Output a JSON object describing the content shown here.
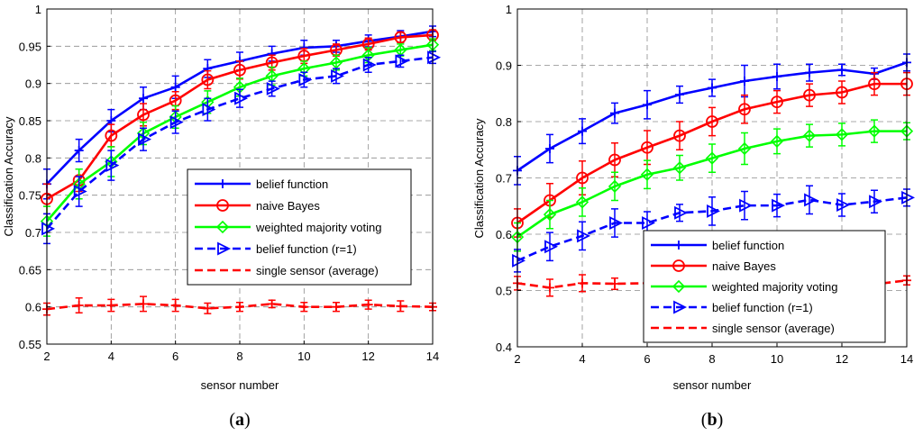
{
  "chart_data": [
    {
      "type": "line",
      "panel_label_open": "(",
      "panel_label_letter": "a",
      "panel_label_close": ")",
      "xlabel": "sensor number",
      "ylabel": "Classification Accuracy",
      "xlim": [
        2,
        14
      ],
      "ylim": [
        0.55,
        1
      ],
      "xticks": [
        2,
        4,
        6,
        8,
        10,
        12,
        14
      ],
      "yticks": [
        0.55,
        0.6,
        0.65,
        0.7,
        0.75,
        0.8,
        0.85,
        0.9,
        0.95,
        1
      ],
      "ytick_labels": [
        "0.55",
        "0.6",
        "0.65",
        "0.7",
        "0.75",
        "0.8",
        "0.85",
        "0.9",
        "0.95",
        "1"
      ],
      "grid": true,
      "legend_position": "center-right",
      "x": [
        2,
        3,
        4,
        5,
        6,
        7,
        8,
        9,
        10,
        11,
        12,
        13,
        14
      ],
      "series": [
        {
          "name": "belief function",
          "color": "#0000ff",
          "style": "solid",
          "marker": "plus",
          "values": [
            0.765,
            0.81,
            0.85,
            0.88,
            0.895,
            0.92,
            0.93,
            0.94,
            0.948,
            0.95,
            0.957,
            0.963,
            0.97
          ],
          "errors": [
            0.02,
            0.015,
            0.015,
            0.015,
            0.015,
            0.012,
            0.012,
            0.01,
            0.01,
            0.008,
            0.008,
            0.008,
            0.007
          ]
        },
        {
          "name": "naive Bayes",
          "color": "#ff0000",
          "style": "solid",
          "marker": "circle",
          "values": [
            0.745,
            0.77,
            0.83,
            0.858,
            0.877,
            0.905,
            0.918,
            0.928,
            0.937,
            0.945,
            0.953,
            0.962,
            0.965
          ],
          "errors": [
            0.02,
            0.015,
            0.015,
            0.015,
            0.012,
            0.012,
            0.012,
            0.01,
            0.01,
            0.008,
            0.008,
            0.007,
            0.007
          ]
        },
        {
          "name": "weighted majority voting",
          "color": "#00ff00",
          "style": "solid",
          "marker": "diamond",
          "values": [
            0.715,
            0.765,
            0.795,
            0.833,
            0.855,
            0.875,
            0.895,
            0.91,
            0.92,
            0.928,
            0.938,
            0.945,
            0.952
          ],
          "errors": [
            0.02,
            0.02,
            0.02,
            0.015,
            0.015,
            0.015,
            0.012,
            0.012,
            0.01,
            0.01,
            0.01,
            0.008,
            0.008
          ]
        },
        {
          "name": "belief function (r=1)",
          "color": "#0000ff",
          "style": "dashed",
          "marker": "triangle-right",
          "values": [
            0.705,
            0.755,
            0.79,
            0.825,
            0.848,
            0.865,
            0.88,
            0.893,
            0.905,
            0.91,
            0.925,
            0.93,
            0.935
          ],
          "errors": [
            0.02,
            0.02,
            0.02,
            0.015,
            0.015,
            0.015,
            0.012,
            0.01,
            0.01,
            0.01,
            0.01,
            0.008,
            0.008
          ]
        },
        {
          "name": "single sensor (average)",
          "color": "#ff0000",
          "style": "dashed",
          "marker": "plus",
          "values": [
            0.597,
            0.602,
            0.602,
            0.604,
            0.602,
            0.598,
            0.6,
            0.604,
            0.6,
            0.6,
            0.603,
            0.601,
            0.6
          ],
          "errors": [
            0.008,
            0.01,
            0.008,
            0.01,
            0.008,
            0.007,
            0.006,
            0.005,
            0.006,
            0.006,
            0.006,
            0.007,
            0.005
          ]
        }
      ]
    },
    {
      "type": "line",
      "panel_label_open": "(",
      "panel_label_letter": "b",
      "panel_label_close": ")",
      "xlabel": "sensor number",
      "ylabel": "Classification Accuracy",
      "xlim": [
        2,
        14
      ],
      "ylim": [
        0.4,
        1
      ],
      "xticks": [
        2,
        4,
        6,
        8,
        10,
        12,
        14
      ],
      "yticks": [
        0.4,
        0.5,
        0.6,
        0.7,
        0.8,
        0.9,
        1
      ],
      "ytick_labels": [
        "0.4",
        "0.5",
        "0.6",
        "0.7",
        "0.8",
        "0.9",
        "1"
      ],
      "grid": true,
      "legend_position": "bottom-right",
      "x": [
        2,
        3,
        4,
        5,
        6,
        7,
        8,
        9,
        10,
        11,
        12,
        13,
        14
      ],
      "series": [
        {
          "name": "belief function",
          "color": "#0000ff",
          "style": "solid",
          "marker": "plus",
          "values": [
            0.713,
            0.752,
            0.783,
            0.815,
            0.83,
            0.848,
            0.86,
            0.872,
            0.88,
            0.887,
            0.892,
            0.885,
            0.905
          ],
          "errors": [
            0.025,
            0.025,
            0.022,
            0.018,
            0.025,
            0.015,
            0.015,
            0.028,
            0.022,
            0.015,
            0.01,
            0.01,
            0.015
          ]
        },
        {
          "name": "naive Bayes",
          "color": "#ff0000",
          "style": "solid",
          "marker": "circle",
          "values": [
            0.62,
            0.66,
            0.7,
            0.732,
            0.754,
            0.775,
            0.8,
            0.822,
            0.835,
            0.847,
            0.852,
            0.867,
            0.867
          ],
          "errors": [
            0.025,
            0.03,
            0.03,
            0.03,
            0.03,
            0.025,
            0.025,
            0.025,
            0.02,
            0.02,
            0.02,
            0.02,
            0.02
          ]
        },
        {
          "name": "weighted majority voting",
          "color": "#00ff00",
          "style": "solid",
          "marker": "diamond",
          "values": [
            0.595,
            0.635,
            0.657,
            0.685,
            0.706,
            0.718,
            0.735,
            0.752,
            0.765,
            0.775,
            0.777,
            0.783,
            0.783
          ],
          "errors": [
            0.025,
            0.025,
            0.025,
            0.025,
            0.025,
            0.022,
            0.025,
            0.028,
            0.022,
            0.02,
            0.02,
            0.02,
            0.015
          ]
        },
        {
          "name": "belief function (r=1)",
          "color": "#0000ff",
          "style": "dashed",
          "marker": "triangle-right",
          "values": [
            0.553,
            0.578,
            0.597,
            0.62,
            0.62,
            0.638,
            0.641,
            0.651,
            0.651,
            0.661,
            0.652,
            0.658,
            0.665
          ],
          "errors": [
            0.02,
            0.025,
            0.025,
            0.025,
            0.02,
            0.015,
            0.025,
            0.025,
            0.02,
            0.025,
            0.02,
            0.02,
            0.015
          ]
        },
        {
          "name": "single sensor (average)",
          "color": "#ff0000",
          "style": "dashed",
          "marker": "plus",
          "values": [
            0.513,
            0.505,
            0.513,
            0.512,
            0.513,
            0.511,
            0.512,
            0.51,
            0.511,
            0.51,
            0.51,
            0.511,
            0.518
          ],
          "errors": [
            0.012,
            0.015,
            0.015,
            0.01,
            0.01,
            0.01,
            0.008,
            0.008,
            0.008,
            0.008,
            0.008,
            0.008,
            0.008
          ]
        }
      ]
    }
  ]
}
